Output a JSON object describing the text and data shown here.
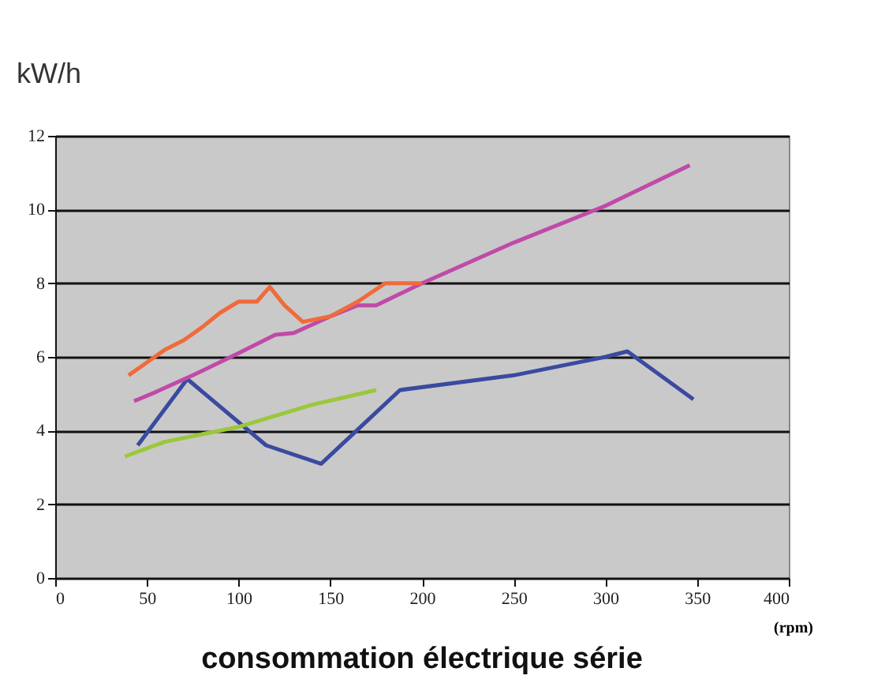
{
  "chart_data": {
    "type": "line",
    "title": "consommation électrique série",
    "ylabel": "kW/h",
    "xlabel": "(rpm)",
    "xlim": [
      0,
      400
    ],
    "xticks": [
      0,
      50,
      100,
      150,
      200,
      250,
      300,
      350,
      400
    ],
    "ylim": [
      0,
      12
    ],
    "yticks": [
      0,
      2,
      4,
      6,
      8,
      10,
      12
    ],
    "grid": "y",
    "marker": "none",
    "series": [
      {
        "color": "#3a4aa0",
        "x": [
          45,
          72,
          115,
          145,
          188,
          250,
          300,
          312,
          348
        ],
        "values": [
          3.6,
          5.4,
          3.6,
          3.1,
          5.1,
          5.5,
          6.0,
          6.15,
          4.85
        ]
      },
      {
        "color": "#c04aa8",
        "x": [
          43,
          55,
          75,
          100,
          120,
          130,
          150,
          165,
          175,
          200,
          250,
          300,
          346
        ],
        "values": [
          4.8,
          5.05,
          5.5,
          6.1,
          6.6,
          6.65,
          7.1,
          7.4,
          7.4,
          8.0,
          9.1,
          10.1,
          11.2
        ]
      },
      {
        "color": "#f06a3a",
        "x": [
          40,
          50,
          60,
          70,
          80,
          90,
          100,
          110,
          117,
          125,
          135,
          150,
          165,
          180,
          200
        ],
        "values": [
          5.5,
          5.85,
          6.2,
          6.45,
          6.8,
          7.2,
          7.5,
          7.5,
          7.9,
          7.4,
          6.95,
          7.1,
          7.5,
          8.0,
          8.0
        ]
      },
      {
        "color": "#9ac83a",
        "x": [
          38,
          60,
          100,
          140,
          175
        ],
        "values": [
          3.3,
          3.7,
          4.1,
          4.7,
          5.1
        ]
      }
    ]
  }
}
